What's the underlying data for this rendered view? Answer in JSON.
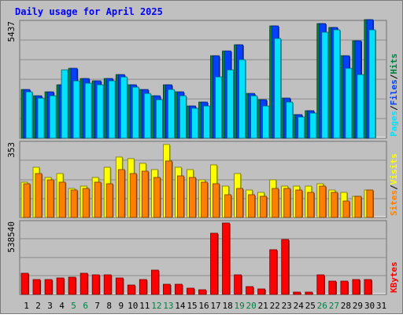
{
  "title": "Daily usage for April 2025",
  "colors": {
    "background": "#c0c0c0",
    "title": "#0000ff",
    "hits": "#008040",
    "files": "#0040ff",
    "pages": "#00e0ff",
    "visits": "#ffff00",
    "sites": "#ff8000",
    "kbytes": "#ff0000",
    "weekend_label": "#008040",
    "weekday_label": "#000000",
    "legend_sep": "#000000"
  },
  "chart_data": [
    {
      "type": "bar",
      "panel": "top",
      "ymax_label": "5437",
      "ymax": 5437,
      "legend": [
        {
          "text": "Hits",
          "color_key": "hits"
        },
        {
          "text": "/",
          "color_key": "legend_sep"
        },
        {
          "text": "Files",
          "color_key": "files"
        },
        {
          "text": "/",
          "color_key": "legend_sep"
        },
        {
          "text": "Pages",
          "color_key": "pages"
        }
      ],
      "categories": [
        "1",
        "2",
        "3",
        "4",
        "5",
        "6",
        "7",
        "8",
        "9",
        "10",
        "11",
        "12",
        "13",
        "14",
        "15",
        "16",
        "17",
        "18",
        "19",
        "20",
        "21",
        "22",
        "23",
        "24",
        "25",
        "26",
        "27",
        "28",
        "29",
        "30",
        "31"
      ],
      "series": [
        {
          "name": "Hits",
          "color_key": "hits",
          "values": [
            2300,
            2000,
            2200,
            2500,
            3300,
            2800,
            2700,
            2800,
            3000,
            2500,
            2300,
            2000,
            2500,
            2200,
            1500,
            1700,
            3900,
            4100,
            4400,
            2100,
            1800,
            5300,
            1900,
            1100,
            1300,
            5400,
            5200,
            3900,
            4600,
            5600,
            null
          ]
        },
        {
          "name": "Files",
          "color_key": "files",
          "values": [
            2300,
            2000,
            2200,
            2500,
            3300,
            2800,
            2700,
            2800,
            3000,
            2500,
            2300,
            2000,
            2500,
            2200,
            1500,
            1700,
            3900,
            4100,
            4400,
            2100,
            1800,
            5300,
            1900,
            1100,
            1300,
            5400,
            5200,
            3900,
            4600,
            5600,
            null
          ]
        },
        {
          "name": "Pages",
          "color_key": "pages",
          "values": [
            2200,
            1900,
            2000,
            3200,
            2700,
            2600,
            2500,
            2700,
            2900,
            2400,
            2100,
            1800,
            2300,
            2000,
            1400,
            1500,
            2900,
            3200,
            3700,
            2000,
            1500,
            4700,
            1700,
            1000,
            1200,
            5000,
            5100,
            3300,
            3000,
            5100,
            null
          ]
        }
      ]
    },
    {
      "type": "bar",
      "panel": "middle",
      "ymax_label": "353",
      "ymax": 353,
      "legend": [
        {
          "text": "Visits",
          "color_key": "visits"
        },
        {
          "text": "/",
          "color_key": "legend_sep"
        },
        {
          "text": "Sites",
          "color_key": "sites"
        }
      ],
      "categories": [
        "1",
        "2",
        "3",
        "4",
        "5",
        "6",
        "7",
        "8",
        "9",
        "10",
        "11",
        "12",
        "13",
        "14",
        "15",
        "16",
        "17",
        "18",
        "19",
        "20",
        "21",
        "22",
        "23",
        "24",
        "25",
        "26",
        "27",
        "28",
        "29",
        "30",
        "31"
      ],
      "series": [
        {
          "name": "Visits",
          "color_key": "visits",
          "values": [
            170,
            240,
            190,
            210,
            140,
            150,
            190,
            240,
            290,
            280,
            260,
            230,
            350,
            240,
            230,
            180,
            250,
            150,
            210,
            130,
            120,
            180,
            150,
            150,
            150,
            160,
            130,
            120,
            100,
            130,
            null
          ]
        },
        {
          "name": "Sites",
          "color_key": "sites",
          "values": [
            160,
            210,
            180,
            170,
            130,
            140,
            170,
            160,
            230,
            210,
            220,
            190,
            270,
            200,
            190,
            170,
            160,
            110,
            140,
            110,
            100,
            140,
            140,
            130,
            120,
            150,
            120,
            80,
            100,
            130,
            null
          ]
        }
      ]
    },
    {
      "type": "bar",
      "panel": "bottom",
      "ymax_label": "538540",
      "ymax": 538540,
      "legend": [
        {
          "text": "KBytes",
          "color_key": "kbytes"
        }
      ],
      "categories": [
        "1",
        "2",
        "3",
        "4",
        "5",
        "6",
        "7",
        "8",
        "9",
        "10",
        "11",
        "12",
        "13",
        "14",
        "15",
        "16",
        "17",
        "18",
        "19",
        "20",
        "21",
        "22",
        "23",
        "24",
        "25",
        "26",
        "27",
        "28",
        "29",
        "30",
        "31"
      ],
      "series": [
        {
          "name": "KBytes",
          "color_key": "kbytes",
          "values": [
            160000,
            115000,
            115000,
            125000,
            130000,
            160000,
            150000,
            145000,
            125000,
            70000,
            115000,
            185000,
            75000,
            75000,
            50000,
            35000,
            460000,
            538540,
            150000,
            60000,
            40000,
            340000,
            415000,
            20000,
            20000,
            150000,
            100000,
            100000,
            115000,
            115000,
            null
          ]
        }
      ]
    }
  ],
  "x_labels": [
    {
      "text": "1",
      "weekend": false
    },
    {
      "text": "2",
      "weekend": false
    },
    {
      "text": "3",
      "weekend": false
    },
    {
      "text": "4",
      "weekend": false
    },
    {
      "text": "5",
      "weekend": true
    },
    {
      "text": "6",
      "weekend": true
    },
    {
      "text": "7",
      "weekend": false
    },
    {
      "text": "8",
      "weekend": false
    },
    {
      "text": "9",
      "weekend": false
    },
    {
      "text": "10",
      "weekend": false
    },
    {
      "text": "11",
      "weekend": false
    },
    {
      "text": "12",
      "weekend": true
    },
    {
      "text": "13",
      "weekend": true
    },
    {
      "text": "14",
      "weekend": false
    },
    {
      "text": "15",
      "weekend": false
    },
    {
      "text": "16",
      "weekend": false
    },
    {
      "text": "17",
      "weekend": false
    },
    {
      "text": "18",
      "weekend": false
    },
    {
      "text": "19",
      "weekend": true
    },
    {
      "text": "20",
      "weekend": true
    },
    {
      "text": "21",
      "weekend": false
    },
    {
      "text": "22",
      "weekend": false
    },
    {
      "text": "23",
      "weekend": false
    },
    {
      "text": "24",
      "weekend": false
    },
    {
      "text": "25",
      "weekend": false
    },
    {
      "text": "26",
      "weekend": true
    },
    {
      "text": "27",
      "weekend": true
    },
    {
      "text": "28",
      "weekend": false
    },
    {
      "text": "29",
      "weekend": false
    },
    {
      "text": "30",
      "weekend": false
    },
    {
      "text": "31",
      "weekend": false
    }
  ]
}
